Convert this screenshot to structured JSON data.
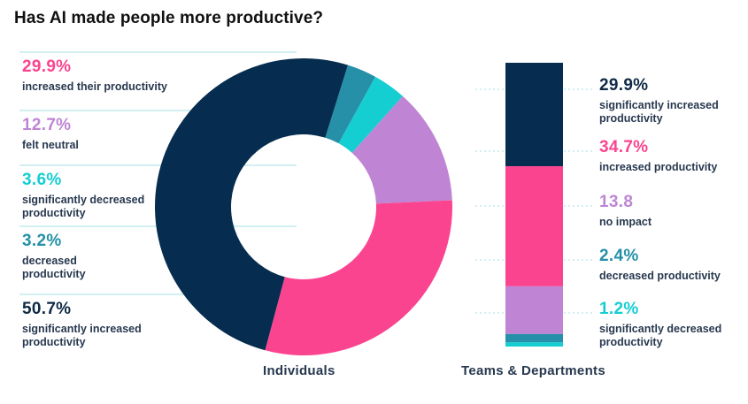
{
  "page_title": "Has AI made people more productive?",
  "colors": {
    "navy": "#062d4f",
    "pink": "#fb4490",
    "lavender": "#bf85d4",
    "cyan": "#14ced2",
    "teal": "#2590a8",
    "guide": "#a4dfe3"
  },
  "chart_data": [
    {
      "type": "pie",
      "variant": "donut",
      "title": "Individuals",
      "slices": [
        {
          "value": 50.7,
          "pct": "50.7%",
          "label": "significantly increased productivity",
          "color": "#062d4f"
        },
        {
          "value": 3.2,
          "pct": "3.2%",
          "label": "decreased productivity",
          "color": "#2590a8"
        },
        {
          "value": 3.6,
          "pct": "3.6%",
          "label": "significantly decreased productivity",
          "color": "#14ced2"
        },
        {
          "value": 12.7,
          "pct": "12.7%",
          "label": "felt neutral",
          "color": "#bf85d4"
        },
        {
          "value": 29.9,
          "pct": "29.9%",
          "label": "increased their productivity",
          "color": "#fb4490"
        }
      ],
      "legend_order": [
        4,
        3,
        2,
        1,
        0
      ]
    },
    {
      "type": "bar",
      "variant": "stacked-100",
      "title": "Teams & Departments",
      "segments": [
        {
          "value": 29.9,
          "pct": "29.9%",
          "label": "significantly increased productivity",
          "color": "#062d4f"
        },
        {
          "value": 34.7,
          "pct": "34.7%",
          "label": "increased productivity",
          "color": "#fb4490"
        },
        {
          "value": 13.8,
          "pct": "13.8",
          "label": "no impact",
          "color": "#bf85d4"
        },
        {
          "value": 2.4,
          "pct": "2.4%",
          "label": "decreased productivity",
          "color": "#2590a8"
        },
        {
          "value": 1.2,
          "pct": "1.2%",
          "label": "significantly decreased productivity",
          "color": "#14ced2"
        }
      ]
    }
  ]
}
